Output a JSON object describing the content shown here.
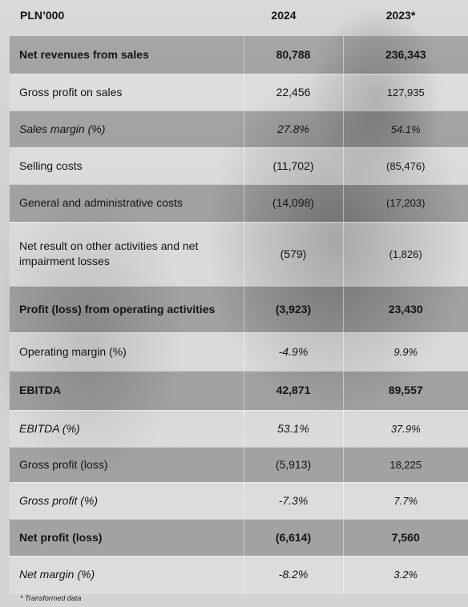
{
  "header": {
    "label": "PLN’000",
    "col_2024": "2024",
    "col_2023": "2023*"
  },
  "rows": [
    {
      "label": "Net revenues from sales",
      "v2024": "80,788",
      "v2023": "236,343"
    },
    {
      "label": "Gross profit on sales",
      "v2024": "22,456",
      "v2023": "127,935"
    },
    {
      "label": "Sales margin (%)",
      "v2024": "27.8%",
      "v2023": "54.1%"
    },
    {
      "label": "Selling costs",
      "v2024": "(11,702)",
      "v2023": "(85,476)"
    },
    {
      "label": "General and administrative costs",
      "v2024": "(14,098)",
      "v2023": "(17,203)"
    },
    {
      "label": "Net result on other activities and net impairment losses",
      "v2024": "(579)",
      "v2023": "(1,826)"
    },
    {
      "label": "Profit (loss) from operating activities",
      "v2024": "(3,923)",
      "v2023": "23,430"
    },
    {
      "label": "Operating margin (%)",
      "v2024": "-4.9%",
      "v2023": "9.9%"
    },
    {
      "label": "EBITDA",
      "v2024": "42,871",
      "v2023": "89,557"
    },
    {
      "label": "EBITDA (%)",
      "v2024": "53.1%",
      "v2023": "37.9%"
    },
    {
      "label": "Gross profit (loss)",
      "v2024": "(5,913)",
      "v2023": "18,225"
    },
    {
      "label": "Gross profit (%)",
      "v2024": "-7.3%",
      "v2023": "7.7%"
    },
    {
      "label": "Net profit (loss)",
      "v2024": "(6,614)",
      "v2023": "7,560"
    },
    {
      "label": "Net margin (%)",
      "v2024": "-8.2%",
      "v2023": "3.2%"
    }
  ],
  "footnote": "* Transformed data"
}
